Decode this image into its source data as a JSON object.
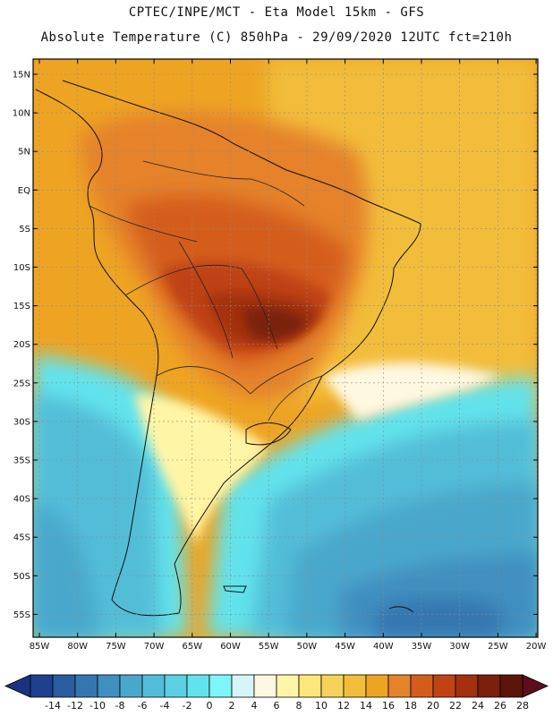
{
  "header": {
    "line1": "CPTEC/INPE/MCT -  Eta Model 15km - GFS",
    "line2": "Absolute Temperature (C) 850hPa - 29/09/2020 12UTC fct=210h"
  },
  "map": {
    "lat_labels": [
      "15N",
      "10N",
      "5N",
      "EQ",
      "5S",
      "10S",
      "15S",
      "20S",
      "25S",
      "30S",
      "35S",
      "40S",
      "45S",
      "50S",
      "55S"
    ],
    "lon_labels": [
      "85W",
      "80W",
      "75W",
      "70W",
      "65W",
      "60W",
      "55W",
      "50W",
      "45W",
      "40W",
      "35W",
      "30W",
      "25W",
      "20W"
    ]
  },
  "colorbar": {
    "ticks": [
      "-14",
      "-12",
      "-10",
      "-8",
      "-6",
      "-4",
      "-2",
      "0",
      "2",
      "4",
      "6",
      "8",
      "10",
      "12",
      "14",
      "16",
      "18",
      "20",
      "22",
      "24",
      "26",
      "28"
    ],
    "colors": [
      "#1f3f8f",
      "#2a5d9f",
      "#3576b0",
      "#3f8fbf",
      "#4aa7cc",
      "#52bdd8",
      "#5ad0e2",
      "#62e3ec",
      "#7ef5f7",
      "#d6f5fb",
      "#fff8e1",
      "#fff5a6",
      "#fbe77a",
      "#f5d35a",
      "#f2bd3a",
      "#eea423",
      "#e5822a",
      "#d55d1b",
      "#bf4314",
      "#a3300f",
      "#7a200c",
      "#5e1509"
    ],
    "left_arrow_color": "#1a3380",
    "right_arrow_color": "#5a0e1e"
  }
}
